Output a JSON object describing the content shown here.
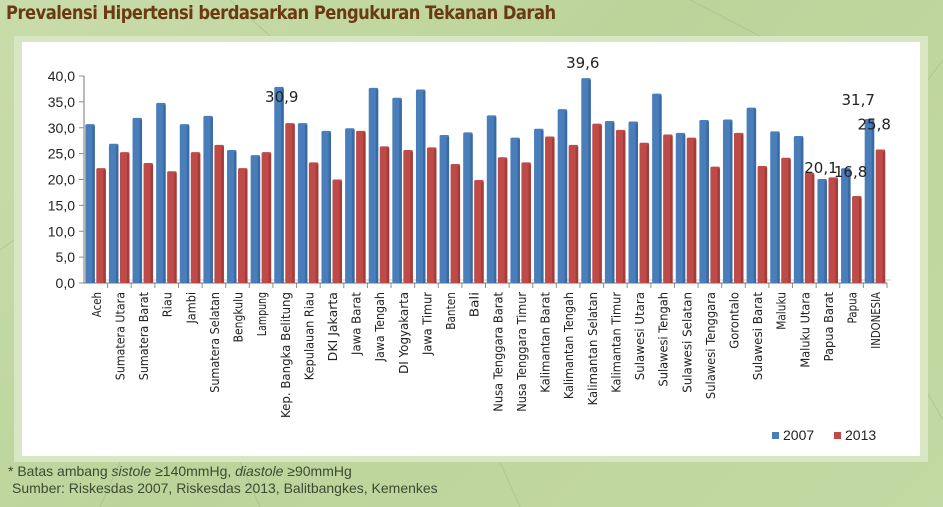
{
  "title": "Prevalensi Hipertensi berdasarkan Pengukuran Tekanan Darah",
  "footnote": {
    "line1_prefix": "* Batas ambang ",
    "line1_sistole": "sistole",
    "line1_mid": " ≥140mmHg, ",
    "line1_diastole": "diastole",
    "line1_suffix": " ≥90mmHg",
    "line2": "Sumber: Riskesdas 2007, Riskesdas 2013, Balitbangkes, Kemenkes"
  },
  "colors": {
    "series_2007": "#4a7ebb",
    "series_2013": "#be4b48",
    "title": "#6b3a12",
    "axis": "#8c8c8c"
  },
  "chart_data": {
    "type": "bar",
    "title": "Prevalensi Hipertensi berdasarkan Pengukuran Tekanan Darah",
    "xlabel": "",
    "ylabel": "",
    "ylim": [
      0,
      40
    ],
    "yticks": [
      "0,0",
      "5,0",
      "10,0",
      "15,0",
      "20,0",
      "25,0",
      "30,0",
      "35,0",
      "40,0"
    ],
    "grid": false,
    "legend_position": "bottom-right",
    "categories": [
      "Aceh",
      "Sumatera Utara",
      "Sumatera Barat",
      "Riau",
      "Jambi",
      "Sumatera Selatan",
      "Bengkulu",
      "Lampung",
      "Kep. Bangka Belitung",
      "Kepulauan Riau",
      "DKI Jakarta",
      "Jawa Barat",
      "Jawa Tengah",
      "DI Yogyakarta",
      "Jawa Timur",
      "Banten",
      "Bali",
      "Nusa Tenggara Barat",
      "Nusa Tenggara Timur",
      "Kalimantan Barat",
      "Kalimantan Tengah",
      "Kalimantan Selatan",
      "Kalimantan Timur",
      "Sulawesi Utara",
      "Sulawesi Tengah",
      "Sulawesi Selatan",
      "Sulawesi Tenggara",
      "Gorontalo",
      "Sulawesi Barat",
      "Maluku",
      "Maluku Utara",
      "Papua Barat",
      "Papua",
      "INDONESIA"
    ],
    "series": [
      {
        "name": "2007",
        "values": [
          30.7,
          26.9,
          31.9,
          34.8,
          30.7,
          32.3,
          25.7,
          24.7,
          37.9,
          30.9,
          29.4,
          29.9,
          37.7,
          35.8,
          37.4,
          28.6,
          29.1,
          32.4,
          28.1,
          29.8,
          33.6,
          39.6,
          31.3,
          31.2,
          36.6,
          29.0,
          31.5,
          31.6,
          33.9,
          29.3,
          28.4,
          20.1,
          22.2,
          31.7
        ]
      },
      {
        "name": "2013",
        "values": [
          22.2,
          25.3,
          23.2,
          21.6,
          25.3,
          26.7,
          22.2,
          25.3,
          30.9,
          23.3,
          20.0,
          29.4,
          26.4,
          25.7,
          26.2,
          23.0,
          19.9,
          24.3,
          23.3,
          28.3,
          26.7,
          30.8,
          29.6,
          27.1,
          28.7,
          28.1,
          22.5,
          29.0,
          22.6,
          24.2,
          21.3,
          20.4,
          16.8,
          25.8
        ]
      }
    ],
    "annotations": [
      {
        "category": "Kep. Bangka Belitung",
        "series": "2013",
        "text": "30,9"
      },
      {
        "category": "Kalimantan Selatan",
        "series": "2007",
        "text": "39,6"
      },
      {
        "category": "Papua Barat",
        "series": "2007",
        "text": "20,1"
      },
      {
        "category": "Papua",
        "series": "2013",
        "text": "16,8"
      },
      {
        "category": "INDONESIA",
        "series": "2007",
        "text": "31,7"
      },
      {
        "category": "INDONESIA",
        "series": "2013",
        "text": "25,8"
      }
    ]
  }
}
